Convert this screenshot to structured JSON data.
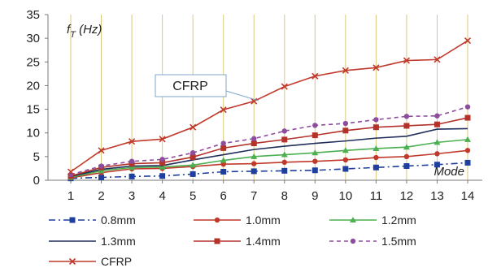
{
  "chart_data": {
    "type": "line",
    "title": "",
    "ylabel_main": "f",
    "ylabel_sub": "T",
    "ylabel_unit": " (Hz)",
    "xlabel": "Mode",
    "x": [
      1,
      2,
      3,
      4,
      5,
      6,
      7,
      8,
      9,
      10,
      11,
      12,
      13,
      14
    ],
    "ylim": [
      0,
      35
    ],
    "yticks": [
      0,
      5,
      10,
      15,
      20,
      25,
      30,
      35
    ],
    "grid": "vertical",
    "legend_position": "bottom",
    "annotation": {
      "text": "CFRP",
      "target_series": "CFRP",
      "target_x": 7
    },
    "series": [
      {
        "name": "0.8mm",
        "color": "#1f3f9f",
        "dash": "8,4,2,4",
        "marker": "square",
        "values": [
          0.4,
          0.6,
          0.8,
          0.9,
          1.3,
          1.8,
          1.9,
          2.0,
          2.1,
          2.4,
          2.7,
          3.0,
          3.3,
          3.7
        ]
      },
      {
        "name": "1.0mm",
        "color": "#c0392b",
        "dash": "",
        "marker": "circle",
        "values": [
          0.5,
          1.6,
          2.4,
          2.5,
          2.9,
          3.4,
          3.5,
          3.8,
          4.0,
          4.3,
          4.8,
          5.0,
          5.6,
          6.3
        ]
      },
      {
        "name": "1.2mm",
        "color": "#4caf50",
        "dash": "",
        "marker": "triangle",
        "values": [
          0.6,
          2.0,
          2.7,
          2.8,
          3.2,
          4.2,
          5.0,
          5.4,
          5.8,
          6.3,
          6.7,
          7.0,
          8.0,
          8.6
        ]
      },
      {
        "name": "1.3mm",
        "color": "#1f2d5a",
        "dash": "",
        "marker": "none",
        "values": [
          0.8,
          2.3,
          3.0,
          3.1,
          4.3,
          5.4,
          6.5,
          7.2,
          7.8,
          8.3,
          8.9,
          9.3,
          10.8,
          10.9
        ]
      },
      {
        "name": "1.4mm",
        "color": "#b3322a",
        "dash": "",
        "marker": "square",
        "values": [
          0.9,
          2.7,
          3.5,
          3.7,
          4.9,
          6.8,
          7.8,
          8.6,
          9.5,
          10.5,
          11.2,
          11.5,
          11.8,
          13.2
        ]
      },
      {
        "name": "1.5mm",
        "color": "#8e4c9e",
        "dash": "5,4",
        "marker": "circle",
        "values": [
          1.2,
          3.0,
          4.0,
          4.4,
          5.8,
          7.8,
          8.8,
          10.4,
          11.6,
          12.0,
          12.8,
          13.5,
          13.6,
          15.5
        ]
      },
      {
        "name": "CFRP",
        "color": "#c0392b",
        "dash": "",
        "marker": "x",
        "values": [
          1.8,
          6.3,
          8.2,
          8.7,
          11.2,
          14.9,
          16.7,
          19.8,
          22.0,
          23.2,
          23.8,
          25.3,
          25.5,
          29.5
        ]
      }
    ]
  }
}
